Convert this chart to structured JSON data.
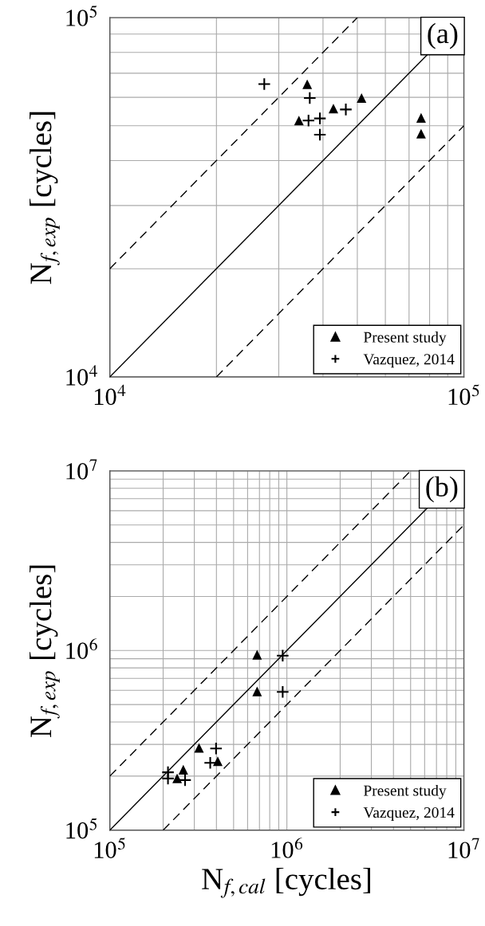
{
  "chart_data": [
    {
      "type": "scatter",
      "log": "xy",
      "grid": true,
      "legend": "bottom right",
      "tick_labels": "xy",
      "ylabel": "N$_{f,exp}$ [cycles]",
      "annotations": [
        "(a)"
      ],
      "xlim": [
        10000,
        100000
      ],
      "ylim": [
        10000,
        100000
      ],
      "xticks": [
        {
          "value": 10000,
          "label": "10$^{4}$"
        },
        {
          "value": 100000,
          "label": "10$^{5}$"
        }
      ],
      "yticks": [
        {
          "value": 10000,
          "label": "10$^{4}$"
        },
        {
          "value": 100000,
          "label": "10$^{5}$"
        }
      ],
      "series": [
        {
          "name": "Present study",
          "marker": "triangle",
          "color": "#000000",
          "x": [
            36100,
            34200,
            42800,
            51400,
            75700,
            75700
          ],
          "values": [
            65200,
            51700,
            55800,
            59700,
            52600,
            47500
          ]
        },
        {
          "name": "Vazquez, 2014",
          "marker": "cross",
          "color": "#000000",
          "x": [
            27300,
            36700,
            36400,
            39200,
            39200,
            46400
          ],
          "values": [
            65300,
            59700,
            51700,
            52400,
            47200,
            55500
          ]
        },
        {
          "type": "line",
          "line_style": "solid",
          "color": "#000000",
          "x": [
            10000,
            100000
          ],
          "values": [
            10000,
            100000
          ]
        },
        {
          "type": "line",
          "line_style": "dashed",
          "color": "#000000",
          "x": [
            10000,
            50000
          ],
          "values": [
            20000,
            100000
          ]
        },
        {
          "type": "line",
          "line_style": "dashed",
          "color": "#000000",
          "x": [
            20000,
            100000
          ],
          "values": [
            10000,
            50000
          ]
        }
      ]
    },
    {
      "type": "scatter",
      "log": "xy",
      "grid": true,
      "legend": "bottom right",
      "xlabel": "N$_{f,cal}$ [cycles]",
      "ylabel": "N$_{f,exp}$ [cycles]",
      "annotations": [
        "(b)"
      ],
      "xlim": [
        100000,
        10000000
      ],
      "ylim": [
        100000,
        10000000
      ],
      "xticks": [
        {
          "value": 100000,
          "label": "10$^{5}$"
        },
        {
          "value": 1000000,
          "label": "10$^{6}$"
        },
        {
          "value": 10000000,
          "label": "10$^{7}$"
        }
      ],
      "yticks": [
        {
          "value": 100000,
          "label": "10$^{5}$"
        },
        {
          "value": 1000000,
          "label": "10$^{6}$"
        },
        {
          "value": 10000000,
          "label": "10$^{7}$"
        }
      ],
      "series": [
        {
          "name": "Present study",
          "marker": "triangle",
          "color": "#000000",
          "x": [
            679000,
            679000,
            319000,
            407000,
            260000,
            240000
          ],
          "values": [
            947000,
            592000,
            287000,
            242000,
            217000,
            194000
          ]
        },
        {
          "name": "Vazquez, 2014",
          "marker": "cross",
          "color": "#000000",
          "x": [
            947000,
            947000,
            398000,
            369000,
            213000,
            213000,
            266000
          ],
          "values": [
            937000,
            588000,
            285000,
            237000,
            210000,
            194000,
            190000
          ]
        },
        {
          "type": "line",
          "line_style": "solid",
          "color": "#000000",
          "x": [
            100000,
            10000000
          ],
          "values": [
            100000,
            10000000
          ]
        },
        {
          "type": "line",
          "line_style": "dashed",
          "color": "#000000",
          "x": [
            100000,
            5000000
          ],
          "values": [
            200000,
            10000000
          ]
        },
        {
          "type": "line",
          "line_style": "dashed",
          "color": "#000000",
          "x": [
            200000,
            10000000
          ],
          "values": [
            100000,
            5000000
          ]
        }
      ]
    }
  ]
}
